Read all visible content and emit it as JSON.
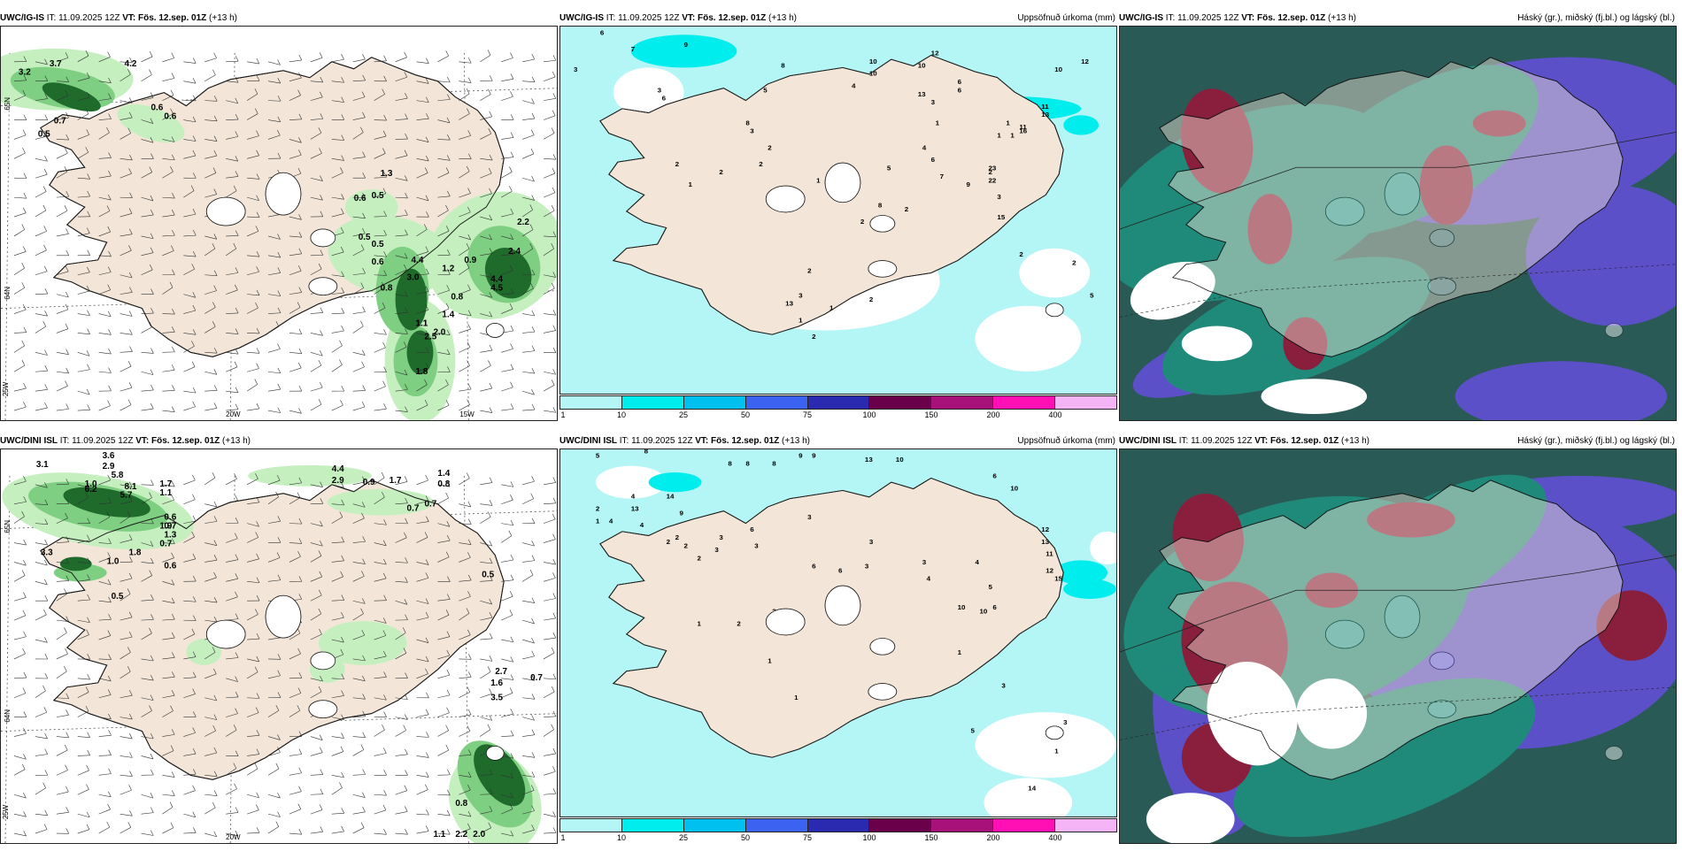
{
  "panels": [
    {
      "id": "ig-precip-top",
      "model_label": "UWC/IG-IS",
      "it_text": "IT: 11.09.2025 12Z",
      "vt_text": "VT: Fös. 12.sep. 01Z",
      "lead_text": "(+13 h)",
      "right_title": "",
      "values": [
        "3.7",
        "3.2",
        "4.2",
        "0.7",
        "0.5",
        "0.6",
        "0.6",
        "1.3",
        "0.6",
        "0.5",
        "0.5",
        "0.5",
        "2.2",
        "2.4",
        "0.6",
        "4.4",
        "0.9",
        "3.0",
        "1.2",
        "4.4",
        "4.5",
        "0.8",
        "0.8",
        "1.4",
        "1.1",
        "1.1",
        "2.0",
        "2.5",
        "1.8"
      ],
      "lat_labels": [
        "65N",
        "64N"
      ],
      "lon_labels": [
        "25W",
        "20W",
        "15W"
      ]
    },
    {
      "id": "ig-accum-top",
      "model_label": "UWC/IG-IS",
      "it_text": "IT: 11.09.2025 12Z",
      "vt_text": "VT: Fös. 12.sep. 01Z",
      "lead_text": "(+13 h)",
      "right_title": "Uppsöfnuð úrkoma (mm)",
      "values": [
        "6",
        "7",
        "9",
        "3",
        "8",
        "3",
        "6",
        "5",
        "10",
        "4",
        "10",
        "10",
        "12",
        "13",
        "6",
        "6",
        "3",
        "1",
        "1",
        "1",
        "1",
        "11",
        "13",
        "11",
        "16",
        "23",
        "22",
        "15",
        "12",
        "10",
        "8",
        "3",
        "2",
        "2",
        "2",
        "2",
        "1",
        "2",
        "4",
        "6",
        "7",
        "9",
        "2",
        "3",
        "5",
        "8",
        "1",
        "2",
        "2",
        "2",
        "1",
        "2",
        "3",
        "2",
        "13",
        "1",
        "2",
        "2",
        "2",
        "5"
      ],
      "colorbar_labels": [
        "1",
        "10",
        "25",
        "50",
        "75",
        "100",
        "150",
        "200",
        "400"
      ]
    },
    {
      "id": "ig-cloud-top",
      "model_label": "UWC/IG-IS",
      "it_text": "IT: 11.09.2025 12Z",
      "vt_text": "VT: Fös. 12.sep. 01Z",
      "lead_text": "(+13 h)",
      "right_title": "Háský (gr.), miðský (fj.bl.) og lágský (bl.)"
    },
    {
      "id": "dini-precip-bottom",
      "model_label": "UWC/DINI ISL",
      "it_text": "IT: 11.09.2025 12Z",
      "vt_text": "VT: Fös. 12.sep. 01Z",
      "lead_text": "(+13 h)",
      "right_title": "",
      "values": [
        "3.1",
        "3.6",
        "2.9",
        "5.8",
        "1.0",
        "6.2",
        "8.1",
        "5.7",
        "1.7",
        "1.1",
        "0.6",
        "1.9",
        "1.3",
        "0.7",
        "0.7",
        "4.4",
        "2.9",
        "0.9",
        "1.7",
        "1.4",
        "0.8",
        "0.7",
        "0.7",
        "3.3",
        "1.0",
        "1.8",
        "0.6",
        "0.5",
        "0.5",
        "2.7",
        "1.6",
        "0.7",
        "3.5",
        "0.8",
        "2.2",
        "2.0",
        "1.1"
      ],
      "lat_labels": [
        "65N",
        "64N"
      ],
      "lon_labels": [
        "25W",
        "20W"
      ]
    },
    {
      "id": "dini-accum-bottom",
      "model_label": "UWC/DINI ISL",
      "it_text": "IT: 11.09.2025 12Z",
      "vt_text": "VT: Fös. 12.sep. 01Z",
      "lead_text": "(+13 h)",
      "right_title": "Uppsöfnuð úrkoma (mm)",
      "values": [
        "5",
        "8",
        "8",
        "8",
        "9",
        "9",
        "8",
        "13",
        "10",
        "6",
        "10",
        "4",
        "13",
        "14",
        "9",
        "2",
        "4",
        "4",
        "1",
        "3",
        "2",
        "2",
        "2",
        "3",
        "2",
        "6",
        "3",
        "3",
        "3",
        "6",
        "6",
        "3",
        "3",
        "4",
        "4",
        "5",
        "12",
        "13",
        "11",
        "12",
        "15",
        "10",
        "10",
        "6",
        "1",
        "2",
        "3",
        "8",
        "1",
        "1",
        "3",
        "1",
        "3",
        "5",
        "1",
        "14"
      ],
      "colorbar_labels": [
        "1",
        "10",
        "25",
        "50",
        "75",
        "100",
        "150",
        "200",
        "400"
      ]
    },
    {
      "id": "dini-cloud-bottom",
      "model_label": "UWC/DINI ISL",
      "it_text": "IT: 11.09.2025 12Z",
      "vt_text": "VT: Fös. 12.sep. 01Z",
      "lead_text": "(+13 h)",
      "right_title": "Háský (gr.), miðský (fj.bl.) og lágský (bl.)"
    }
  ],
  "colors": {
    "land": "#f3e6d8",
    "coast": "#1a1a1a",
    "precip_light": "#c6efc0",
    "precip_mid": "#7fcf82",
    "precip_dark": "#1f6b2c",
    "precip_darkest": "#0b3d15",
    "accum_1": "#b4f5f5",
    "accum_10": "#00eded",
    "cloud_high": "#8a1f3d",
    "cloud_mid": "#5b50c8",
    "cloud_low": "#1f8a7a",
    "cloud_base": "#2a5a55"
  },
  "colorbar_colors": [
    "#b4f5f5",
    "#00eded",
    "#00c0f0",
    "#3b62f0",
    "#2a2ab0",
    "#6a004a",
    "#a8107a",
    "#ff10b4",
    "#f5b4f5"
  ]
}
